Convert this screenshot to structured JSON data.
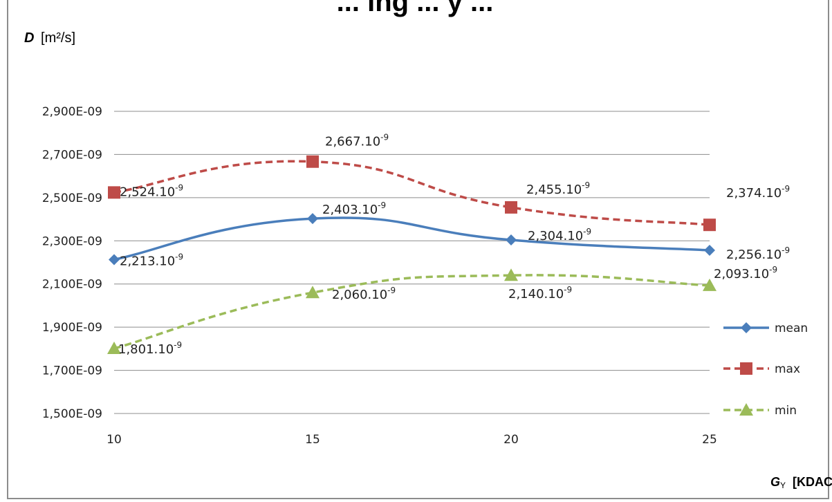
{
  "chart_data": {
    "type": "line",
    "title": "... ing ... y ...",
    "ylabel_symbol": "D",
    "ylabel_unit": "[m²/s]",
    "xlabel_symbol": "G",
    "xlabel_sub": "Y",
    "xlabel_unit": "[KDAC]",
    "x": [
      10,
      15,
      20,
      25
    ],
    "ylim": [
      1.5e-09,
      2.9e-09
    ],
    "y_ticks": [
      {
        "value": 2.9e-09,
        "label": "2,900E-09"
      },
      {
        "value": 2.7e-09,
        "label": "2,700E-09"
      },
      {
        "value": 2.5e-09,
        "label": "2,500E-09"
      },
      {
        "value": 2.3e-09,
        "label": "2,300E-09"
      },
      {
        "value": 2.1e-09,
        "label": "2,100E-09"
      },
      {
        "value": 1.9e-09,
        "label": "1,900E-09"
      },
      {
        "value": 1.7e-09,
        "label": "1,700E-09"
      },
      {
        "value": 1.5e-09,
        "label": "1,500E-09"
      }
    ],
    "x_tick_labels": [
      "10",
      "15",
      "20",
      "25"
    ],
    "grid": "horizontal",
    "legend_position": "right",
    "series": [
      {
        "name": "mean",
        "color": "#4a7ebb",
        "dash": "solid",
        "marker": "diamond",
        "values": [
          2.213e-09,
          2.403e-09,
          2.304e-09,
          2.256e-09
        ],
        "labels": [
          "2,213.10",
          "2,403.10",
          "2,304.10",
          "2,256.10"
        ]
      },
      {
        "name": "max",
        "color": "#be4b48",
        "dash": "dashed",
        "marker": "square",
        "values": [
          2.524e-09,
          2.667e-09,
          2.455e-09,
          2.374e-09
        ],
        "labels": [
          "2,524.10",
          "2,667.10",
          "2,455.10",
          "2,374.10"
        ]
      },
      {
        "name": "min",
        "color": "#9bbb59",
        "dash": "dashed",
        "marker": "triangle",
        "values": [
          1.801e-09,
          2.06e-09,
          2.14e-09,
          2.093e-09
        ],
        "labels": [
          "1,801.10",
          "2,060.10",
          "2,140.10",
          "2,093.10"
        ]
      }
    ],
    "label_exponent": "-9"
  }
}
